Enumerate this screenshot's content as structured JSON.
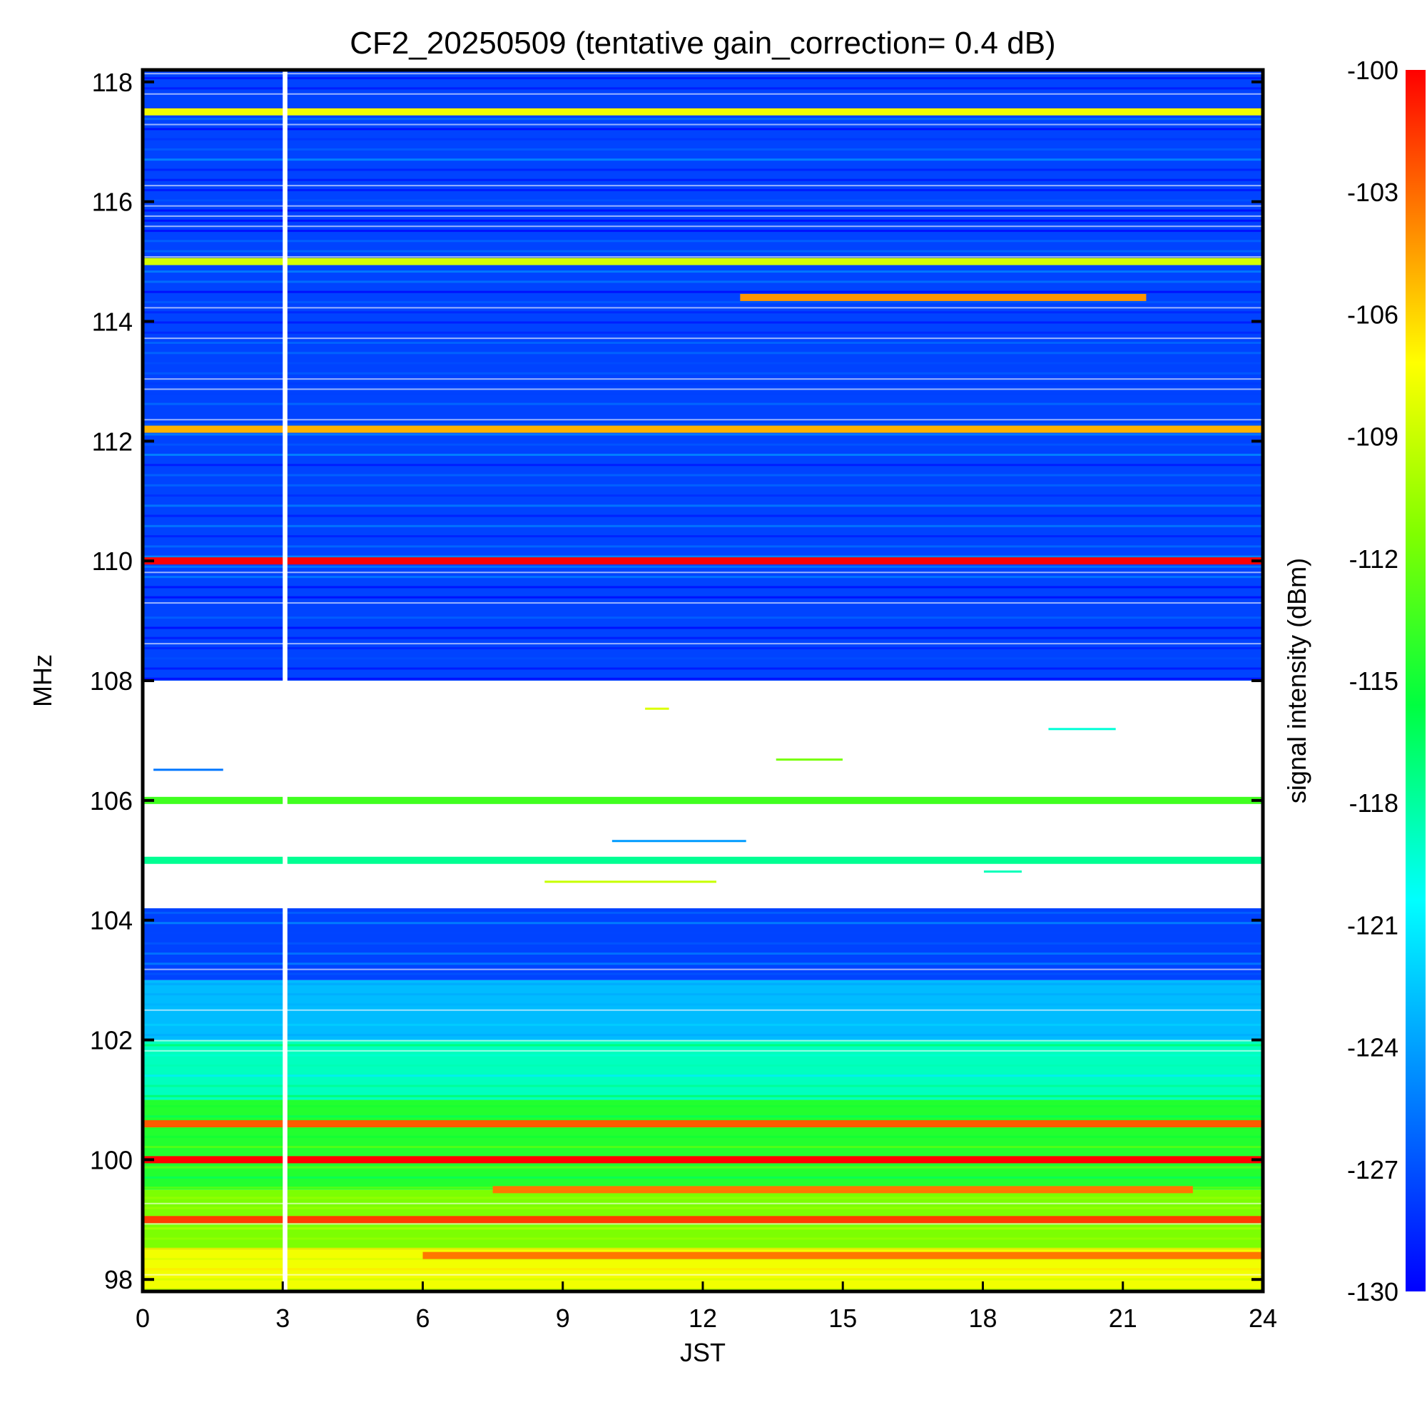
{
  "chart_data": {
    "type": "heatmap",
    "title": "CF2_20250509 (tentative gain_correction=  0.4 dB)",
    "xlabel": "JST",
    "ylabel": "MHz",
    "colorbar_label": "signal intensity (dBm)",
    "xlim": [
      0,
      24
    ],
    "ylim": [
      97.8,
      118.2
    ],
    "x_ticks": [
      "0",
      "3",
      "6",
      "9",
      "12",
      "15",
      "18",
      "21",
      "24"
    ],
    "y_ticks": [
      "98",
      "100",
      "102",
      "104",
      "106",
      "108",
      "110",
      "112",
      "114",
      "116",
      "118"
    ],
    "colorbar_range": [
      -130,
      -100
    ],
    "colorbar_ticks": [
      "-100",
      "-103",
      "-106",
      "-109",
      "-112",
      "-115",
      "-118",
      "-121",
      "-124",
      "-127",
      "-130"
    ],
    "colormap": [
      "#0000ff",
      "#0090ff",
      "#00ffff",
      "#00ff40",
      "#80ff00",
      "#ffff00",
      "#ff8000",
      "#ff0000"
    ],
    "data_gap": {
      "x_range": [
        3.0,
        3.1
      ],
      "note": "no data"
    },
    "background_levels": [
      {
        "freq_range": [
          97.8,
          98.5
        ],
        "dBm": -109
      },
      {
        "freq_range": [
          98.5,
          99.5
        ],
        "dBm": -113
      },
      {
        "freq_range": [
          99.5,
          101.0
        ],
        "dBm": -116
      },
      {
        "freq_range": [
          101.0,
          102.0
        ],
        "dBm": -120
      },
      {
        "freq_range": [
          102.0,
          103.0
        ],
        "dBm": -124
      },
      {
        "freq_range": [
          103.0,
          104.2
        ],
        "dBm": -128
      },
      {
        "freq_range": [
          104.2,
          108.0
        ],
        "dBm": null
      },
      {
        "freq_range": [
          108.0,
          118.2
        ],
        "dBm": -128
      }
    ],
    "bands": [
      {
        "freq": 117.5,
        "dBm": -109,
        "x_range": [
          0,
          24
        ]
      },
      {
        "freq": 115.0,
        "dBm": -110,
        "x_range": [
          0,
          24
        ]
      },
      {
        "freq": 114.4,
        "dBm": -105,
        "x_range": [
          12.8,
          21.5
        ]
      },
      {
        "freq": 112.2,
        "dBm": -106,
        "x_range": [
          0,
          24
        ]
      },
      {
        "freq": 110.0,
        "dBm": -100,
        "x_range": [
          0,
          24
        ]
      },
      {
        "freq": 105.0,
        "dBm": -119,
        "x_range": [
          0,
          24
        ]
      },
      {
        "freq": 106.0,
        "dBm": -115,
        "x_range": [
          0,
          24
        ]
      },
      {
        "freq": 100.0,
        "dBm": -100,
        "x_range": [
          0,
          24
        ]
      },
      {
        "freq": 100.6,
        "dBm": -103,
        "x_range": [
          0,
          24
        ]
      },
      {
        "freq": 99.5,
        "dBm": -104,
        "x_range": [
          7.5,
          22.5
        ]
      },
      {
        "freq": 99.0,
        "dBm": -102,
        "x_range": [
          0,
          24
        ]
      },
      {
        "freq": 98.4,
        "dBm": -104,
        "x_range": [
          6,
          24
        ]
      }
    ]
  }
}
